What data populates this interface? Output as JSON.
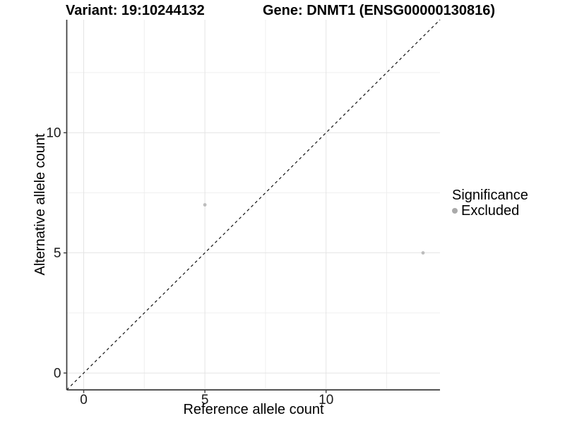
{
  "titles": {
    "left": "Variant: 19:10244132",
    "right": "Gene: DNMT1 (ENSG00000130816)"
  },
  "chart_data": {
    "type": "scatter",
    "xlabel": "Reference allele count",
    "ylabel": "Alternative allele count",
    "xlim": [
      -0.7,
      14.7
    ],
    "ylim": [
      -0.7,
      14.7
    ],
    "x_major_ticks": [
      0,
      5,
      10
    ],
    "y_major_ticks": [
      0,
      5,
      10
    ],
    "x_minor_ticks": [
      2.5,
      7.5,
      12.5
    ],
    "y_minor_ticks": [
      2.5,
      7.5,
      12.5
    ],
    "grid": {
      "show": true,
      "major_color": "#e4e4e4",
      "minor_color": "#efefef"
    },
    "axis_line_color": "#3c3c3c",
    "tick_label_color": "#1a1a1a",
    "reference_line": {
      "style": "dashed",
      "color": "#111111",
      "from": [
        -0.7,
        -0.7
      ],
      "to": [
        14.7,
        14.7
      ]
    },
    "series": [
      {
        "name": "Excluded",
        "color": "#bdbdbd",
        "point_radius": 2.4,
        "points": [
          [
            5,
            7
          ],
          [
            14,
            5
          ]
        ]
      }
    ],
    "legend": {
      "title": "Significance",
      "position": "right",
      "items": [
        {
          "label": "Excluded",
          "color": "#aaaaaa"
        }
      ]
    }
  }
}
